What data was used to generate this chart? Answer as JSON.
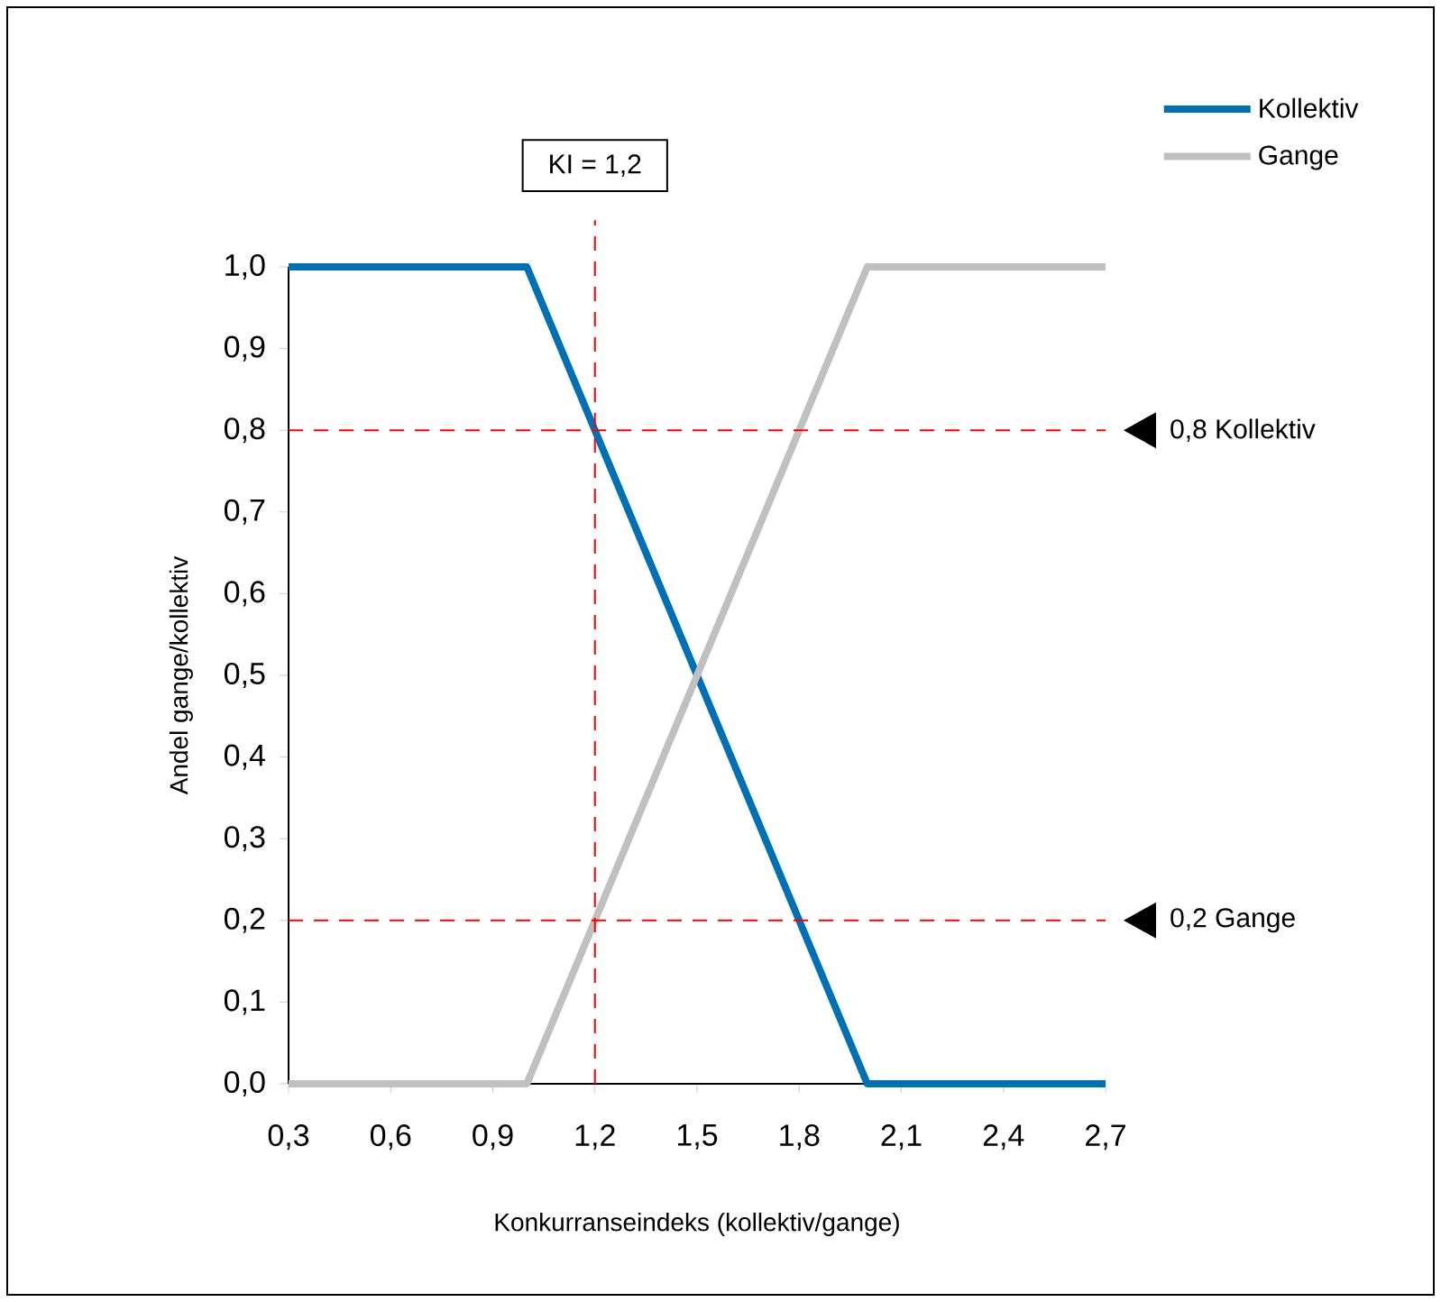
{
  "chart_data": {
    "type": "line",
    "xlabel": "Konkurranseindeks (kollektiv/gange)",
    "ylabel": "Andel gange/kollektiv",
    "xlim": [
      0.3,
      2.7
    ],
    "ylim": [
      0,
      1
    ],
    "xticks": [
      {
        "value": 0.3,
        "label": "0,3"
      },
      {
        "value": 0.6,
        "label": "0,6"
      },
      {
        "value": 0.9,
        "label": "0,9"
      },
      {
        "value": 1.2,
        "label": "1,2"
      },
      {
        "value": 1.5,
        "label": "1,5"
      },
      {
        "value": 1.8,
        "label": "1,8"
      },
      {
        "value": 2.1,
        "label": "2,1"
      },
      {
        "value": 2.4,
        "label": "2,4"
      },
      {
        "value": 2.7,
        "label": "2,7"
      }
    ],
    "yticks": [
      {
        "value": 0,
        "label": "0,0"
      },
      {
        "value": 0.1,
        "label": "0,1"
      },
      {
        "value": 0.2,
        "label": "0,2"
      },
      {
        "value": 0.3,
        "label": "0,3"
      },
      {
        "value": 0.4,
        "label": "0,4"
      },
      {
        "value": 0.5,
        "label": "0,5"
      },
      {
        "value": 0.6,
        "label": "0,6"
      },
      {
        "value": 0.7,
        "label": "0,7"
      },
      {
        "value": 0.8,
        "label": "0,8"
      },
      {
        "value": 0.9,
        "label": "0,9"
      },
      {
        "value": 1.0,
        "label": "1,0"
      }
    ],
    "x": [
      0.3,
      1.0,
      2.0,
      2.7
    ],
    "series": [
      {
        "name": "Kollektiv",
        "color": "#0070b4",
        "values": [
          1,
          1,
          0,
          0
        ]
      },
      {
        "name": "Gange",
        "color": "#c0c0c0",
        "values": [
          0,
          0,
          1,
          1
        ]
      }
    ],
    "ref_lines": [
      {
        "axis": "x",
        "value": 1.2,
        "label": "KI = 1,2",
        "color": "#ff0000",
        "line_style": "dashed"
      },
      {
        "axis": "y",
        "value": 0.8,
        "label": "0,8 Kollektiv",
        "color": "#ff0000",
        "line_style": "dashed"
      },
      {
        "axis": "y",
        "value": 0.2,
        "label": "0,2 Gange",
        "color": "#ff0000",
        "line_style": "dashed"
      }
    ],
    "legend": "top right",
    "grid": false,
    "marker": "none",
    "line_style": "solid"
  }
}
